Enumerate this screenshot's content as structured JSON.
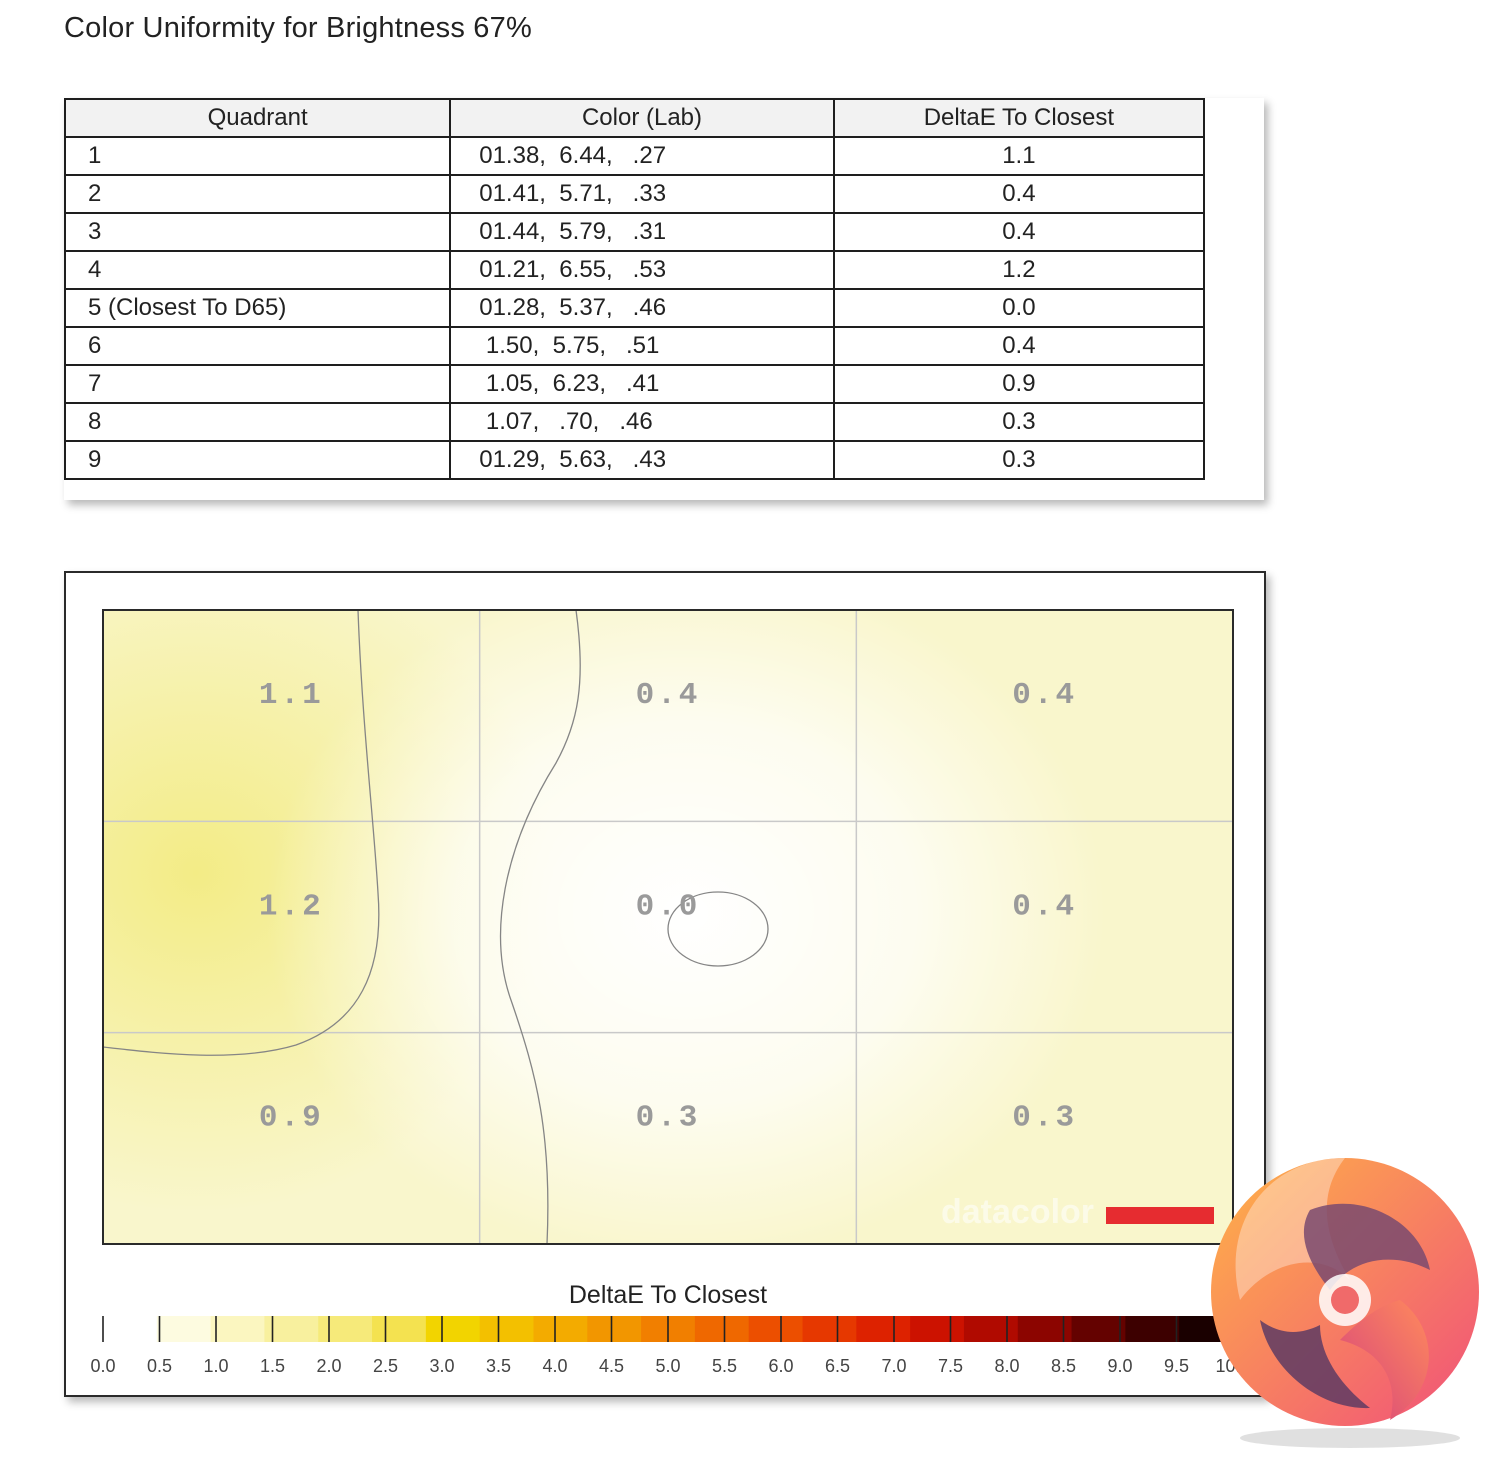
{
  "title": "Color Uniformity for Brightness 67%",
  "table": {
    "headers": [
      "Quadrant",
      "Color (Lab)",
      "DeltaE To Closest"
    ],
    "rows": [
      {
        "quadrant": "1",
        "lab": "01.38,  6.44,   .27",
        "delta": "1.1"
      },
      {
        "quadrant": "2",
        "lab": "01.41,  5.71,   .33",
        "delta": "0.4"
      },
      {
        "quadrant": "3",
        "lab": "01.44,  5.79,   .31",
        "delta": "0.4"
      },
      {
        "quadrant": "4",
        "lab": "01.21,  6.55,   .53",
        "delta": "1.2"
      },
      {
        "quadrant": "5 (Closest To D65)",
        "lab": "01.28,  5.37,   .46",
        "delta": "0.0"
      },
      {
        "quadrant": "6",
        "lab": " 1.50,  5.75,   .51",
        "delta": "0.4"
      },
      {
        "quadrant": "7",
        "lab": " 1.05,  6.23,   .41",
        "delta": "0.9"
      },
      {
        "quadrant": "8",
        "lab": " 1.07,   .70,   .46",
        "delta": "0.3"
      },
      {
        "quadrant": "9",
        "lab": "01.29,  5.63,   .43",
        "delta": "0.3"
      }
    ]
  },
  "chart_data": {
    "type": "heatmap",
    "grid": {
      "rows": 3,
      "cols": 3
    },
    "values": [
      [
        1.1,
        0.4,
        0.4
      ],
      [
        1.2,
        0.0,
        0.4
      ],
      [
        0.9,
        0.3,
        0.3
      ]
    ],
    "cell_labels": [
      [
        "1.1",
        "0.4",
        "0.4"
      ],
      [
        "1.2",
        "0.0",
        "0.4"
      ],
      [
        "0.9",
        "0.3",
        "0.3"
      ]
    ],
    "colorbar": {
      "title": "DeltaE To Closest",
      "range": [
        0.0,
        10.0
      ],
      "ticks": [
        "0.0",
        "0.5",
        "1.0",
        "1.5",
        "2.0",
        "2.5",
        "3.0",
        "3.5",
        "4.0",
        "4.5",
        "5.0",
        "5.5",
        "6.0",
        "6.5",
        "7.0",
        "7.5",
        "8.0",
        "8.5",
        "9.0",
        "9.5",
        "10.0"
      ],
      "colors": [
        "#ffffff",
        "#fdfbe0",
        "#fbf6c0",
        "#f8f09e",
        "#f6ea7a",
        "#f4e250",
        "#f2d400",
        "#f3c000",
        "#f3ab00",
        "#f29600",
        "#f17f00",
        "#ef6800",
        "#ec4f00",
        "#e63800",
        "#dd2200",
        "#cc1200",
        "#b00a00",
        "#8c0500",
        "#640200",
        "#3d0000",
        "#1a0000"
      ]
    },
    "watermark": "datacolor",
    "brand_color": "#e62c30"
  }
}
